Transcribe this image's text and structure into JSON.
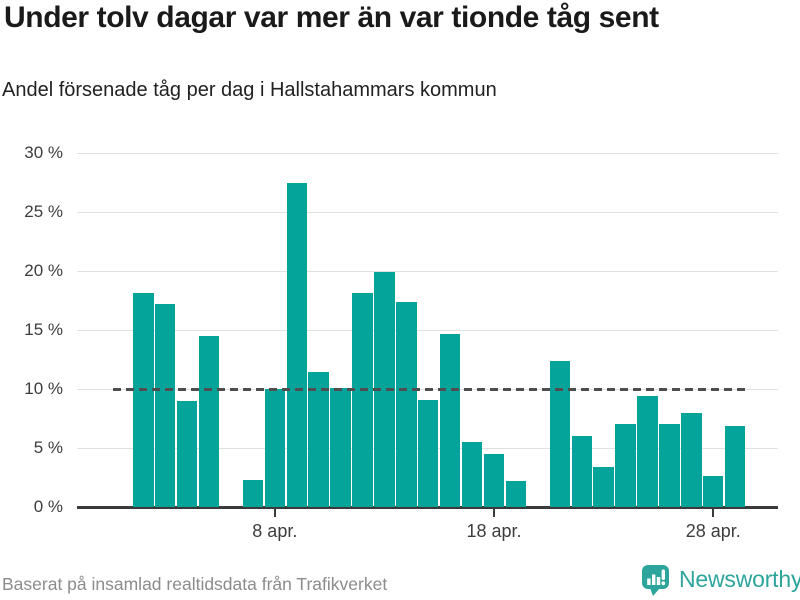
{
  "title": "Under tolv dagar var mer än var tionde tåg sent",
  "subtitle": "Andel försenade tåg per dag i Hallstahammars kommun",
  "footer": {
    "source": "Baserat på insamlad realtidsdata från Trafikverket",
    "brand": "Newsworthy"
  },
  "colors": {
    "bar": "#05a49b",
    "brand": "#2ea59c",
    "grid": "#e1e1e1",
    "axis": "#3a3a3a",
    "reference": "#4e4e4e",
    "title_text": "#1a1a1a",
    "muted_text": "#8c8c8c"
  },
  "chart_data": {
    "type": "bar",
    "title": "Under tolv dagar var mer än var tionde tåg sent",
    "subtitle": "Andel försenade tåg per dag i Hallstahammars kommun",
    "x_unit": "day of April",
    "ylim": [
      0,
      30
    ],
    "grid": true,
    "reference_line": 10,
    "y_ticks": [
      0,
      5,
      10,
      15,
      20,
      25,
      30
    ],
    "y_tick_labels": [
      "0 %",
      "5 %",
      "10 %",
      "15 %",
      "20 %",
      "25 %",
      "30 %"
    ],
    "x_ticks": [
      {
        "day": 8,
        "label": "8 apr."
      },
      {
        "day": 18,
        "label": "18 apr."
      },
      {
        "day": 28,
        "label": "28 apr."
      }
    ],
    "missing_days": [
      6,
      20
    ],
    "points": [
      {
        "day": 2,
        "value": 18.1
      },
      {
        "day": 3,
        "value": 17.2
      },
      {
        "day": 4,
        "value": 9.0
      },
      {
        "day": 5,
        "value": 14.5
      },
      {
        "day": 7,
        "value": 2.3
      },
      {
        "day": 8,
        "value": 10.0
      },
      {
        "day": 9,
        "value": 27.5
      },
      {
        "day": 10,
        "value": 11.4
      },
      {
        "day": 11,
        "value": 10.1
      },
      {
        "day": 12,
        "value": 18.1
      },
      {
        "day": 13,
        "value": 19.9
      },
      {
        "day": 14,
        "value": 17.4
      },
      {
        "day": 15,
        "value": 9.1
      },
      {
        "day": 16,
        "value": 14.7
      },
      {
        "day": 17,
        "value": 5.5
      },
      {
        "day": 18,
        "value": 4.5
      },
      {
        "day": 19,
        "value": 2.2
      },
      {
        "day": 21,
        "value": 12.4
      },
      {
        "day": 22,
        "value": 6.0
      },
      {
        "day": 23,
        "value": 3.4
      },
      {
        "day": 24,
        "value": 7.0
      },
      {
        "day": 25,
        "value": 9.4
      },
      {
        "day": 26,
        "value": 7.0
      },
      {
        "day": 27,
        "value": 8.0
      },
      {
        "day": 28,
        "value": 2.6
      },
      {
        "day": 29,
        "value": 6.9
      }
    ]
  }
}
